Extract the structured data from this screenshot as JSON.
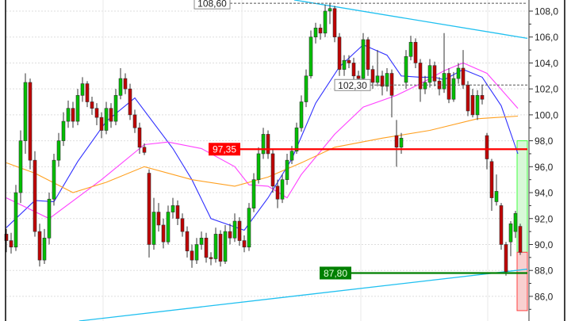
{
  "chart_data": {
    "type": "candlestick",
    "title": "",
    "xlabel": "",
    "ylabel": "",
    "ylim": [
      84.9,
      108.9
    ],
    "y_ticks": [
      "86,0",
      "88,0",
      "90,0",
      "92,0",
      "94,0",
      "96,0",
      "98,0",
      "100,0",
      "102,0",
      "104,0",
      "106,0",
      "108,0"
    ],
    "y_tick_values": [
      86,
      88,
      90,
      92,
      94,
      96,
      98,
      100,
      102,
      104,
      106,
      108
    ],
    "grid": true,
    "colors": {
      "up": "#00c000",
      "down": "#c00000",
      "wick": "#333333",
      "ma_fast": "#3030ff",
      "ma_mid": "#ff40ff",
      "ma_slow": "#ffa020",
      "trend": "#20c0f0",
      "resistance": "#ff0000",
      "support": "#008000"
    },
    "candles": [
      [
        90.8,
        91.2,
        89.4,
        90.3
      ],
      [
        90.3,
        90.9,
        89.3,
        89.8
      ],
      [
        89.8,
        94.6,
        89.5,
        94.0
      ],
      [
        94.0,
        98.8,
        93.2,
        98.0
      ],
      [
        98.0,
        103.2,
        97.0,
        102.5
      ],
      [
        102.5,
        102.8,
        95.8,
        96.5
      ],
      [
        96.5,
        97.2,
        90.6,
        91.0
      ],
      [
        91.0,
        91.6,
        88.3,
        88.8
      ],
      [
        88.8,
        91.2,
        88.5,
        90.5
      ],
      [
        90.5,
        94.0,
        90.0,
        93.5
      ],
      [
        93.5,
        97.0,
        93.0,
        96.5
      ],
      [
        96.5,
        98.6,
        96.0,
        98.0
      ],
      [
        98.0,
        100.2,
        97.6,
        99.5
      ],
      [
        99.5,
        101.1,
        99.0,
        100.5
      ],
      [
        100.5,
        101.0,
        99.0,
        99.5
      ],
      [
        99.5,
        102.0,
        99.2,
        101.5
      ],
      [
        101.5,
        102.9,
        101.0,
        102.4
      ],
      [
        102.4,
        102.6,
        100.6,
        101.0
      ],
      [
        101.0,
        101.4,
        100.0,
        100.5
      ],
      [
        100.5,
        100.9,
        99.2,
        99.8
      ],
      [
        99.8,
        100.2,
        98.2,
        98.8
      ],
      [
        98.8,
        101.0,
        98.5,
        100.5
      ],
      [
        100.5,
        100.9,
        99.0,
        99.5
      ],
      [
        99.5,
        102.0,
        99.2,
        101.5
      ],
      [
        101.5,
        103.6,
        101.2,
        102.8
      ],
      [
        102.8,
        103.2,
        101.6,
        102.0
      ],
      [
        102.0,
        102.4,
        99.6,
        100.0
      ],
      [
        100.0,
        100.4,
        98.6,
        99.0
      ],
      [
        99.0,
        99.4,
        97.0,
        97.5
      ],
      [
        97.5,
        97.8,
        96.9,
        97.1
      ],
      [
        95.5,
        95.8,
        89.0,
        90.0
      ],
      [
        90.0,
        93.6,
        89.6,
        92.5
      ],
      [
        92.5,
        93.2,
        91.0,
        91.5
      ],
      [
        91.5,
        92.0,
        89.7,
        90.2
      ],
      [
        90.2,
        93.0,
        90.0,
        92.5
      ],
      [
        92.5,
        93.6,
        92.0,
        93.0
      ],
      [
        93.0,
        93.4,
        91.5,
        92.0
      ],
      [
        92.0,
        92.4,
        90.6,
        91.0
      ],
      [
        91.0,
        91.4,
        89.0,
        89.5
      ],
      [
        89.5,
        90.0,
        88.2,
        88.8
      ],
      [
        88.8,
        90.5,
        88.5,
        90.0
      ],
      [
        90.0,
        91.0,
        89.6,
        90.5
      ],
      [
        90.5,
        90.9,
        88.6,
        89.0
      ],
      [
        89.0,
        89.4,
        88.4,
        88.9
      ],
      [
        88.9,
        91.3,
        88.6,
        90.8
      ],
      [
        90.8,
        91.1,
        88.3,
        88.7
      ],
      [
        88.7,
        91.5,
        88.5,
        91.0
      ],
      [
        91.0,
        91.6,
        90.0,
        90.5
      ],
      [
        90.5,
        92.4,
        90.2,
        91.8
      ],
      [
        91.8,
        92.1,
        89.9,
        90.3
      ],
      [
        90.3,
        90.7,
        89.4,
        89.8
      ],
      [
        89.8,
        93.2,
        89.5,
        92.8
      ],
      [
        92.8,
        95.5,
        92.5,
        95.0
      ],
      [
        95.0,
        97.5,
        94.7,
        97.0
      ],
      [
        97.0,
        99.0,
        96.6,
        98.5
      ],
      [
        98.5,
        98.8,
        96.6,
        97.0
      ],
      [
        97.0,
        97.3,
        94.0,
        94.5
      ],
      [
        94.5,
        95.0,
        92.8,
        93.5
      ],
      [
        93.5,
        95.4,
        93.2,
        95.0
      ],
      [
        95.0,
        97.0,
        94.6,
        96.5
      ],
      [
        96.5,
        97.6,
        96.2,
        97.2
      ],
      [
        97.2,
        99.4,
        97.0,
        99.0
      ],
      [
        99.0,
        101.5,
        98.7,
        101.0
      ],
      [
        101.0,
        103.5,
        100.6,
        103.0
      ],
      [
        103.0,
        106.5,
        102.8,
        106.0
      ],
      [
        106.0,
        107.1,
        105.5,
        106.7
      ],
      [
        106.7,
        107.0,
        105.8,
        106.3
      ],
      [
        106.3,
        108.5,
        106.0,
        108.0
      ],
      [
        108.0,
        108.6,
        107.0,
        108.2
      ],
      [
        108.2,
        108.4,
        105.6,
        106.0
      ],
      [
        106.0,
        106.3,
        103.0,
        103.5
      ],
      [
        103.5,
        104.6,
        103.0,
        104.2
      ],
      [
        104.2,
        104.6,
        103.6,
        104.0
      ],
      [
        104.0,
        104.4,
        102.6,
        103.0
      ],
      [
        103.0,
        103.4,
        102.3,
        102.8
      ],
      [
        102.8,
        106.3,
        102.5,
        105.8
      ],
      [
        105.8,
        106.0,
        103.0,
        103.5
      ],
      [
        103.5,
        103.8,
        102.0,
        102.5
      ],
      [
        102.5,
        105.0,
        102.2,
        103.0
      ],
      [
        103.0,
        103.4,
        101.5,
        102.2
      ],
      [
        102.2,
        103.6,
        101.8,
        103.2
      ],
      [
        103.2,
        103.5,
        99.8,
        101.5
      ],
      [
        98.4,
        99.6,
        96.0,
        97.5
      ],
      [
        97.5,
        98.6,
        97.0,
        98.2
      ],
      [
        102.5,
        105.0,
        102.0,
        104.5
      ],
      [
        104.5,
        106.1,
        104.2,
        105.6
      ],
      [
        105.6,
        105.9,
        103.6,
        104.0
      ],
      [
        104.0,
        104.3,
        101.0,
        102.0
      ],
      [
        102.0,
        103.0,
        101.6,
        102.5
      ],
      [
        102.5,
        104.3,
        102.1,
        103.8
      ],
      [
        103.8,
        104.1,
        102.2,
        102.6
      ],
      [
        102.6,
        102.9,
        101.5,
        102.0
      ],
      [
        102.0,
        106.3,
        101.7,
        103.2
      ],
      [
        103.2,
        103.6,
        100.9,
        101.2
      ],
      [
        101.2,
        103.3,
        101.0,
        102.8
      ],
      [
        102.8,
        104.0,
        102.4,
        103.6
      ],
      [
        103.6,
        105.0,
        102.0,
        102.3
      ],
      [
        102.3,
        102.6,
        99.9,
        100.3
      ],
      [
        101.5,
        102.0,
        99.8,
        100.0
      ],
      [
        100.0,
        101.9,
        99.6,
        101.5
      ],
      [
        101.5,
        102.3,
        100.8,
        101.2
      ],
      [
        98.4,
        98.6,
        95.8,
        96.6
      ],
      [
        96.4,
        96.6,
        92.6,
        93.6
      ],
      [
        93.3,
        95.4,
        93.0,
        94.1
      ],
      [
        93.0,
        93.2,
        89.6,
        90.0
      ],
      [
        90.0,
        90.2,
        87.6,
        87.9
      ],
      [
        90.2,
        91.8,
        89.1,
        91.6
      ],
      [
        91.0,
        92.6,
        90.5,
        92.4
      ],
      [
        91.4,
        91.6,
        89.2,
        89.4
      ]
    ],
    "moving_averages": [
      {
        "key": "ma_fast",
        "points": [
          [
            0,
            91.3
          ],
          [
            6,
            93.4
          ],
          [
            10,
            93.3
          ],
          [
            15,
            96.4
          ],
          [
            21,
            99.5
          ],
          [
            27,
            101.3
          ],
          [
            35,
            97.4
          ],
          [
            39,
            95
          ],
          [
            43,
            92
          ],
          [
            50,
            91.1
          ],
          [
            55,
            93.6
          ],
          [
            60,
            96.6
          ],
          [
            65,
            100.9
          ],
          [
            70,
            103.7
          ],
          [
            75,
            105.4
          ],
          [
            80,
            104.6
          ],
          [
            83,
            103
          ],
          [
            87,
            102.9
          ],
          [
            90,
            102.9
          ],
          [
            92,
            102.7
          ],
          [
            96,
            103.5
          ],
          [
            100,
            102.9
          ],
          [
            104,
            100.7
          ],
          [
            107.5,
            97
          ]
        ]
      },
      {
        "key": "ma_mid",
        "points": [
          [
            0,
            93.6
          ],
          [
            9,
            92
          ],
          [
            20,
            95
          ],
          [
            29,
            97.7
          ],
          [
            34,
            97.9
          ],
          [
            41,
            97.4
          ],
          [
            48,
            96
          ],
          [
            51,
            94.6
          ],
          [
            55,
            94.5
          ],
          [
            59,
            93.6
          ],
          [
            62,
            95.4
          ],
          [
            69,
            98.5
          ],
          [
            75,
            100.6
          ],
          [
            82,
            101.5
          ],
          [
            87,
            102.4
          ],
          [
            92,
            103.4
          ],
          [
            96,
            104
          ],
          [
            101,
            103.2
          ],
          [
            107.5,
            100.5
          ]
        ]
      },
      {
        "key": "ma_slow",
        "points": [
          [
            0,
            96.3
          ],
          [
            6,
            95.5
          ],
          [
            14,
            94
          ],
          [
            21,
            94.8
          ],
          [
            29,
            96
          ],
          [
            39,
            95
          ],
          [
            48,
            94.5
          ],
          [
            55,
            95.2
          ],
          [
            62,
            96.3
          ],
          [
            69,
            97.5
          ],
          [
            79,
            98.2
          ],
          [
            89,
            98.8
          ],
          [
            99,
            99.7
          ],
          [
            107.5,
            99.9
          ]
        ]
      }
    ],
    "trendlines": [
      {
        "key": "upper",
        "from": [
          60.5,
          108.86
        ],
        "to": [
          109.5,
          105.9
        ]
      },
      {
        "key": "lower",
        "from": [
          15.3,
          84.1
        ],
        "to": [
          109.5,
          88.1
        ]
      }
    ],
    "levels": [
      {
        "key": "resistance",
        "value": 97.35,
        "label": "97,35",
        "style": "solid"
      },
      {
        "key": "support",
        "value": 87.8,
        "label": "87,80",
        "style": "solid"
      },
      {
        "key": "high-marker",
        "value": 108.6,
        "label": "108,60",
        "style": "dashed"
      },
      {
        "key": "mid-marker",
        "value": 102.3,
        "label": "102,30",
        "style": "dashed"
      }
    ],
    "target_zones": [
      {
        "key": "gain",
        "from": 89.4,
        "to": 98.0,
        "color": "#d8f8d8"
      },
      {
        "key": "loss",
        "from": 84.9,
        "to": 89.4,
        "color": "#f8d0d0"
      }
    ]
  }
}
